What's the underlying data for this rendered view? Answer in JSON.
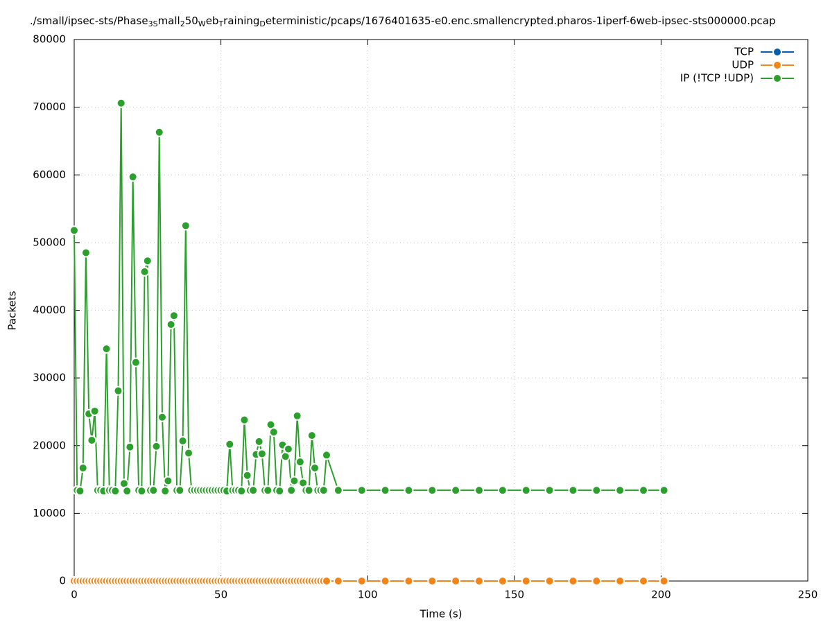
{
  "chart_data": {
    "type": "line",
    "title": [
      "./small/ipsec-sts/Phase",
      "3S",
      "mall",
      "2",
      "50",
      "W",
      "eb",
      "T",
      "raining",
      "D",
      "eterministic/pcaps/1676401635-e0.enc.smallencrypted.pharos-1iperf-6web-ipsec-sts000000.pcap"
    ],
    "x_label": "Time (s)",
    "y_label": "Packets",
    "xlim": [
      0,
      250
    ],
    "xticks": [
      0,
      50,
      100,
      150,
      200,
      250
    ],
    "ylim": [
      0,
      80000
    ],
    "yticks": [
      0,
      10000,
      20000,
      30000,
      40000,
      50000,
      60000,
      70000,
      80000
    ],
    "grid": true,
    "legend": "top-right",
    "x": [
      0,
      1,
      2,
      3,
      4,
      5,
      6,
      7,
      8,
      9,
      10,
      11,
      12,
      13,
      14,
      15,
      16,
      17,
      18,
      19,
      20,
      21,
      22,
      23,
      24,
      25,
      26,
      27,
      28,
      29,
      30,
      31,
      32,
      33,
      34,
      35,
      36,
      37,
      38,
      39,
      40,
      41,
      42,
      43,
      44,
      45,
      46,
      47,
      48,
      49,
      50,
      51,
      52,
      53,
      54,
      55,
      56,
      57,
      58,
      59,
      60,
      61,
      62,
      63,
      64,
      65,
      66,
      67,
      68,
      69,
      70,
      71,
      72,
      73,
      74,
      75,
      76,
      77,
      78,
      79,
      80,
      81,
      82,
      83,
      84,
      85,
      86,
      90,
      98,
      106,
      114,
      122,
      130,
      138,
      146,
      154,
      162,
      170,
      178,
      186,
      194,
      201
    ],
    "series": [
      {
        "name": "TCP",
        "color": "#0060ad",
        "values": [
          0,
          0,
          0,
          0,
          0,
          0,
          0,
          0,
          0,
          0,
          0,
          0,
          0,
          0,
          0,
          0,
          0,
          0,
          0,
          0,
          0,
          0,
          0,
          0,
          0,
          0,
          0,
          0,
          0,
          0,
          0,
          0,
          0,
          0,
          0,
          0,
          0,
          0,
          0,
          0,
          0,
          0,
          0,
          0,
          0,
          0,
          0,
          0,
          0,
          0,
          0,
          0,
          0,
          0,
          0,
          0,
          0,
          0,
          0,
          0,
          0,
          0,
          0,
          0,
          0,
          0,
          0,
          0,
          0,
          0,
          0,
          0,
          0,
          0,
          0,
          0,
          0,
          0,
          0,
          0,
          0,
          0,
          0,
          0,
          0,
          0,
          0,
          0,
          0,
          0,
          0,
          0,
          0,
          0,
          0,
          0,
          0,
          0,
          0,
          0,
          0,
          0
        ]
      },
      {
        "name": "UDP",
        "color": "#f28418",
        "values": [
          0,
          0,
          0,
          0,
          0,
          0,
          0,
          0,
          0,
          0,
          0,
          0,
          0,
          0,
          0,
          0,
          0,
          0,
          0,
          0,
          0,
          0,
          0,
          0,
          0,
          0,
          0,
          0,
          0,
          0,
          0,
          0,
          0,
          0,
          0,
          0,
          0,
          0,
          0,
          0,
          0,
          0,
          0,
          0,
          0,
          0,
          0,
          0,
          0,
          0,
          0,
          0,
          0,
          0,
          0,
          0,
          0,
          0,
          0,
          0,
          0,
          0,
          0,
          0,
          0,
          0,
          0,
          0,
          0,
          0,
          0,
          0,
          0,
          0,
          0,
          0,
          0,
          0,
          0,
          0,
          0,
          0,
          0,
          0,
          0,
          0,
          0,
          0,
          0,
          0,
          0,
          0,
          0,
          0,
          0,
          0,
          0,
          0,
          0,
          0,
          0,
          0
        ]
      },
      {
        "name": "IP (!TCP  !UDP)",
        "color": "#2ca02c",
        "values": [
          51800,
          13400,
          13300,
          16700,
          48500,
          24700,
          20800,
          25100,
          13400,
          13400,
          13300,
          34300,
          13400,
          13400,
          13300,
          28100,
          70600,
          14400,
          13300,
          19800,
          59700,
          32300,
          13400,
          13300,
          45700,
          47300,
          13400,
          13400,
          19900,
          66300,
          24200,
          13300,
          14800,
          37900,
          39200,
          13400,
          13400,
          20700,
          52500,
          18900,
          13400,
          13400,
          13400,
          13400,
          13400,
          13400,
          13400,
          13400,
          13400,
          13400,
          13400,
          13400,
          13300,
          20200,
          13400,
          13400,
          13400,
          13300,
          23800,
          15600,
          13400,
          13400,
          18700,
          20600,
          18800,
          13400,
          13400,
          23100,
          22000,
          13400,
          13300,
          20100,
          18400,
          19500,
          13400,
          14800,
          24400,
          17600,
          14500,
          13400,
          13400,
          21500,
          16700,
          13400,
          13400,
          13400,
          18600,
          13400,
          13400,
          13400,
          13400,
          13400,
          13400,
          13400,
          13400,
          13400,
          13400,
          13400,
          13400,
          13400,
          13400,
          13400
        ]
      }
    ]
  }
}
